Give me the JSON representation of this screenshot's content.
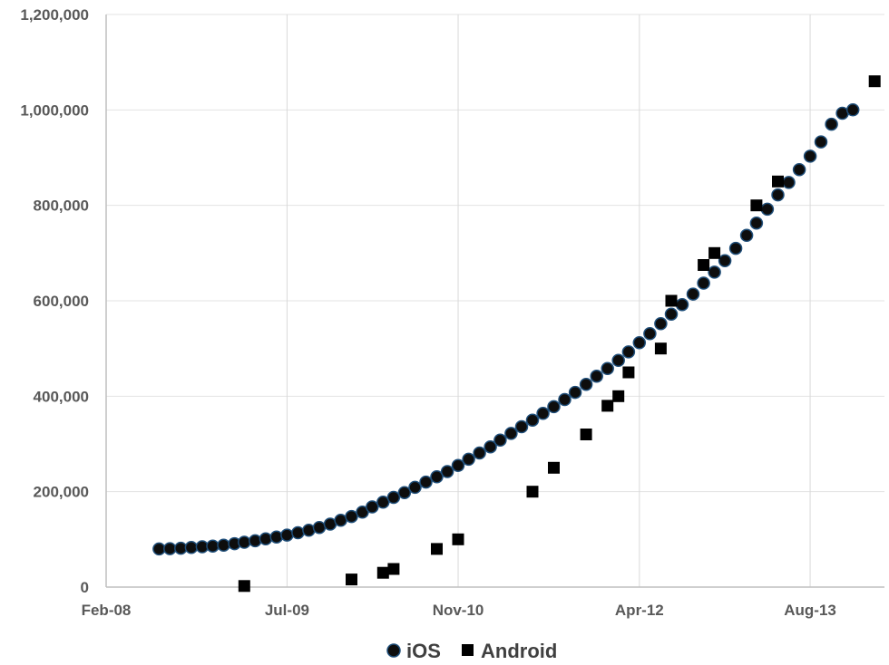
{
  "chart_data": {
    "type": "scatter",
    "title": "",
    "xlabel": "",
    "ylabel": "",
    "x_scale": "date",
    "xlim": [
      "2008-02-01",
      "2014-03-01"
    ],
    "ylim": [
      0,
      1200000
    ],
    "grid": "vertical",
    "legend_position": "bottom",
    "x_tick_labels": [
      "Feb-08",
      "Jul-09",
      "Nov-10",
      "Apr-12",
      "Aug-13"
    ],
    "x_tick_dates": [
      "2008-02-01",
      "2009-07-01",
      "2010-11-01",
      "2012-04-01",
      "2013-08-01"
    ],
    "y_tick_labels": [
      "0",
      "200,000",
      "400,000",
      "600,000",
      "800,000",
      "1,000,000",
      "1,200,000"
    ],
    "y_tick_values": [
      0,
      200000,
      400000,
      600000,
      800000,
      1000000,
      1200000
    ],
    "series": [
      {
        "name": "iOS",
        "marker": "circle",
        "color": "#0d0d0d",
        "edge_color": "#1f4e79",
        "points": [
          [
            "2008-07-01",
            80000
          ],
          [
            "2008-08-01",
            80500
          ],
          [
            "2008-09-01",
            81500
          ],
          [
            "2008-10-01",
            83000
          ],
          [
            "2008-11-01",
            84500
          ],
          [
            "2008-12-01",
            86000
          ],
          [
            "2009-01-01",
            88000
          ],
          [
            "2009-02-01",
            91000
          ],
          [
            "2009-03-01",
            94000
          ],
          [
            "2009-04-01",
            97000
          ],
          [
            "2009-05-01",
            101000
          ],
          [
            "2009-06-01",
            105000
          ],
          [
            "2009-07-01",
            109000
          ],
          [
            "2009-08-01",
            114000
          ],
          [
            "2009-09-01",
            119000
          ],
          [
            "2009-10-01",
            125000
          ],
          [
            "2009-11-01",
            132000
          ],
          [
            "2009-12-01",
            140000
          ],
          [
            "2010-01-01",
            148000
          ],
          [
            "2010-02-01",
            157000
          ],
          [
            "2010-03-01",
            168000
          ],
          [
            "2010-04-01",
            178000
          ],
          [
            "2010-05-01",
            188000
          ],
          [
            "2010-06-01",
            198000
          ],
          [
            "2010-07-01",
            209000
          ],
          [
            "2010-08-01",
            220000
          ],
          [
            "2010-09-01",
            231000
          ],
          [
            "2010-10-01",
            242000
          ],
          [
            "2010-11-01",
            255000
          ],
          [
            "2010-12-01",
            268000
          ],
          [
            "2011-01-01",
            281000
          ],
          [
            "2011-02-01",
            294000
          ],
          [
            "2011-03-01",
            308000
          ],
          [
            "2011-04-01",
            322000
          ],
          [
            "2011-05-01",
            336000
          ],
          [
            "2011-06-01",
            350000
          ],
          [
            "2011-07-01",
            364000
          ],
          [
            "2011-08-01",
            378000
          ],
          [
            "2011-09-01",
            393000
          ],
          [
            "2011-10-01",
            408000
          ],
          [
            "2011-11-01",
            425000
          ],
          [
            "2011-12-01",
            442000
          ],
          [
            "2012-01-01",
            458000
          ],
          [
            "2012-02-01",
            475000
          ],
          [
            "2012-03-01",
            493000
          ],
          [
            "2012-04-01",
            512000
          ],
          [
            "2012-05-01",
            531000
          ],
          [
            "2012-06-01",
            552000
          ],
          [
            "2012-07-01",
            572000
          ],
          [
            "2012-08-01",
            592000
          ],
          [
            "2012-09-01",
            614000
          ],
          [
            "2012-10-01",
            637000
          ],
          [
            "2012-11-01",
            660000
          ],
          [
            "2012-12-01",
            684000
          ],
          [
            "2013-01-01",
            710000
          ],
          [
            "2013-02-01",
            737000
          ],
          [
            "2013-03-01",
            763000
          ],
          [
            "2013-04-01",
            792000
          ],
          [
            "2013-05-01",
            822000
          ],
          [
            "2013-06-01",
            848000
          ],
          [
            "2013-07-01",
            875000
          ],
          [
            "2013-08-01",
            903000
          ],
          [
            "2013-09-01",
            933000
          ],
          [
            "2013-10-01",
            970000
          ],
          [
            "2013-11-01",
            993000
          ],
          [
            "2013-12-01",
            1000000
          ]
        ]
      },
      {
        "name": "Android",
        "marker": "square",
        "color": "#000000",
        "points": [
          [
            "2009-03-01",
            2300
          ],
          [
            "2010-01-01",
            16000
          ],
          [
            "2010-04-01",
            30000
          ],
          [
            "2010-05-01",
            38000
          ],
          [
            "2010-09-01",
            80000
          ],
          [
            "2010-11-01",
            100000
          ],
          [
            "2011-06-01",
            200000
          ],
          [
            "2011-08-01",
            250000
          ],
          [
            "2011-11-01",
            320000
          ],
          [
            "2012-01-01",
            380000
          ],
          [
            "2012-02-01",
            400000
          ],
          [
            "2012-03-01",
            450000
          ],
          [
            "2012-06-01",
            500000
          ],
          [
            "2012-07-01",
            600000
          ],
          [
            "2012-10-01",
            675000
          ],
          [
            "2012-11-01",
            700000
          ],
          [
            "2013-03-01",
            800000
          ],
          [
            "2013-05-01",
            850000
          ],
          [
            "2014-02-01",
            1060000
          ]
        ]
      }
    ]
  }
}
